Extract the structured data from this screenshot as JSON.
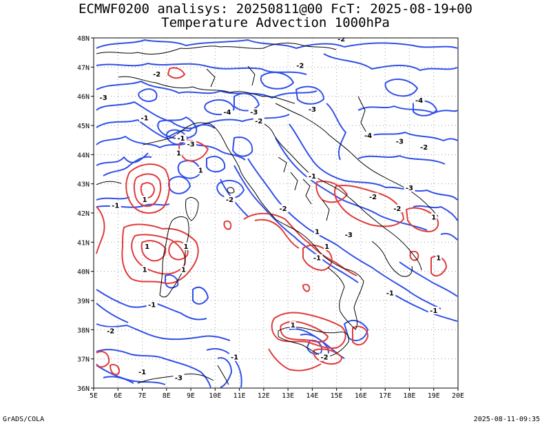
{
  "title_line1": "ECMWF0200 analisys: 20250811@00 FcT: 2025-08-19+00",
  "title_line2": "Temperature Advection 1000hPa",
  "footer_left": "GrADS/COLA",
  "footer_right": "2025-08-11-09:35",
  "axes": {
    "x_ticks": [
      "5E",
      "6E",
      "7E",
      "8E",
      "9E",
      "10E",
      "11E",
      "12E",
      "13E",
      "14E",
      "15E",
      "16E",
      "17E",
      "18E",
      "19E",
      "20E"
    ],
    "y_ticks": [
      "48N",
      "47N",
      "46N",
      "45N",
      "44N",
      "43N",
      "42N",
      "41N",
      "40N",
      "39N",
      "38N",
      "37N",
      "36N"
    ],
    "lon_range": [
      5,
      20
    ],
    "lat_range": [
      36,
      48
    ],
    "grid": "dotted"
  },
  "colors": {
    "negative_contour": "#2f4fe8",
    "positive_contour": "#e03a3a",
    "coastline": "#000000",
    "grid": "#999999"
  },
  "contour_labels": [
    {
      "text": "-2",
      "lon": 15.2,
      "lat": 47.9
    },
    {
      "text": "-2",
      "lon": 7.6,
      "lat": 46.7
    },
    {
      "text": "-2",
      "lon": 13.5,
      "lat": 47.0
    },
    {
      "text": "-3",
      "lon": 5.4,
      "lat": 45.9
    },
    {
      "text": "-1",
      "lon": 7.1,
      "lat": 45.2
    },
    {
      "text": "-3",
      "lon": 9.0,
      "lat": 44.3
    },
    {
      "text": "-4",
      "lon": 10.5,
      "lat": 45.4
    },
    {
      "text": "-3",
      "lon": 11.6,
      "lat": 45.4
    },
    {
      "text": "-2",
      "lon": 11.8,
      "lat": 45.1
    },
    {
      "text": "-3",
      "lon": 14.0,
      "lat": 45.5
    },
    {
      "text": "-4",
      "lon": 18.4,
      "lat": 45.8
    },
    {
      "text": "-4",
      "lon": 16.3,
      "lat": 44.6
    },
    {
      "text": "-3",
      "lon": 17.6,
      "lat": 44.4
    },
    {
      "text": "-2",
      "lon": 18.6,
      "lat": 44.2
    },
    {
      "text": "-1",
      "lon": 8.6,
      "lat": 44.5
    },
    {
      "text": "-2",
      "lon": 10.6,
      "lat": 42.4
    },
    {
      "text": "-2",
      "lon": 12.8,
      "lat": 42.1
    },
    {
      "text": "-1",
      "lon": 5.9,
      "lat": 42.2
    },
    {
      "text": "-1",
      "lon": 14.0,
      "lat": 43.2
    },
    {
      "text": "-2",
      "lon": 16.5,
      "lat": 42.5
    },
    {
      "text": "-3",
      "lon": 18.0,
      "lat": 42.8
    },
    {
      "text": "-2",
      "lon": 17.5,
      "lat": 42.1
    },
    {
      "text": "-3",
      "lon": 15.5,
      "lat": 41.2
    },
    {
      "text": "-1",
      "lon": 14.2,
      "lat": 40.4
    },
    {
      "text": "-1",
      "lon": 17.2,
      "lat": 39.2
    },
    {
      "text": "-1",
      "lon": 19.0,
      "lat": 38.6
    },
    {
      "text": "-1",
      "lon": 7.4,
      "lat": 38.8
    },
    {
      "text": "-2",
      "lon": 5.7,
      "lat": 37.9
    },
    {
      "text": "-1",
      "lon": 7.0,
      "lat": 36.5
    },
    {
      "text": "-3",
      "lon": 8.5,
      "lat": 36.3
    },
    {
      "text": "-1",
      "lon": 10.8,
      "lat": 37.0
    },
    {
      "text": "-2",
      "lon": 14.5,
      "lat": 37.0
    },
    {
      "text": "1",
      "lon": 7.1,
      "lat": 42.4
    },
    {
      "text": "1",
      "lon": 8.5,
      "lat": 44.0
    },
    {
      "text": "1",
      "lon": 9.4,
      "lat": 43.4
    },
    {
      "text": "1",
      "lon": 7.2,
      "lat": 40.8
    },
    {
      "text": "1",
      "lon": 8.8,
      "lat": 40.8
    },
    {
      "text": "1",
      "lon": 8.7,
      "lat": 40.0
    },
    {
      "text": "1",
      "lon": 7.1,
      "lat": 40.0
    },
    {
      "text": "1",
      "lon": 14.2,
      "lat": 41.3
    },
    {
      "text": "1",
      "lon": 14.6,
      "lat": 40.8
    },
    {
      "text": "1",
      "lon": 19.2,
      "lat": 40.4
    },
    {
      "text": "1",
      "lon": 19.0,
      "lat": 41.8
    },
    {
      "text": "1",
      "lon": 13.2,
      "lat": 38.1
    }
  ]
}
